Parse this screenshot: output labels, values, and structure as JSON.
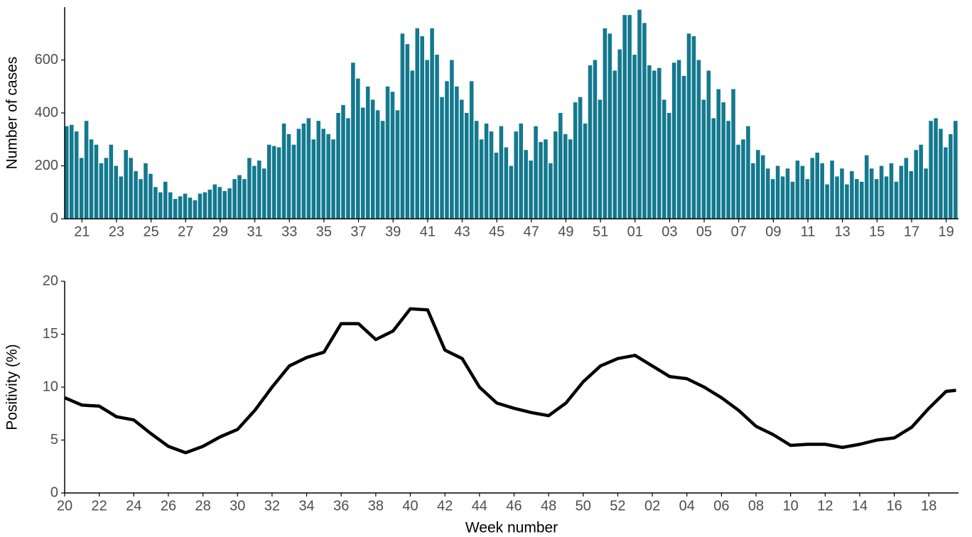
{
  "chart_data": [
    {
      "type": "bar",
      "ylabel": "Number of cases",
      "color": "#13798e",
      "xlim": [
        0,
        362
      ],
      "ylim": [
        0,
        800
      ],
      "yticks": [
        0,
        200,
        400,
        600
      ],
      "xticks": [
        {
          "value": 7,
          "label": "21"
        },
        {
          "value": 21,
          "label": "23"
        },
        {
          "value": 35,
          "label": "25"
        },
        {
          "value": 49,
          "label": "27"
        },
        {
          "value": 63,
          "label": "29"
        },
        {
          "value": 77,
          "label": "31"
        },
        {
          "value": 91,
          "label": "33"
        },
        {
          "value": 105,
          "label": "35"
        },
        {
          "value": 119,
          "label": "37"
        },
        {
          "value": 133,
          "label": "39"
        },
        {
          "value": 147,
          "label": "41"
        },
        {
          "value": 161,
          "label": "43"
        },
        {
          "value": 175,
          "label": "45"
        },
        {
          "value": 189,
          "label": "47"
        },
        {
          "value": 203,
          "label": "49"
        },
        {
          "value": 217,
          "label": "51"
        },
        {
          "value": 231,
          "label": "01"
        },
        {
          "value": 245,
          "label": "03"
        },
        {
          "value": 259,
          "label": "05"
        },
        {
          "value": 273,
          "label": "07"
        },
        {
          "value": 287,
          "label": "09"
        },
        {
          "value": 301,
          "label": "11"
        },
        {
          "value": 315,
          "label": "13"
        },
        {
          "value": 329,
          "label": "15"
        },
        {
          "value": 343,
          "label": "17"
        },
        {
          "value": 357,
          "label": "19"
        }
      ],
      "x": [
        0,
        2,
        4,
        6,
        8,
        10,
        12,
        14,
        16,
        18,
        20,
        22,
        24,
        26,
        28,
        30,
        32,
        34,
        36,
        38,
        40,
        42,
        44,
        46,
        48,
        50,
        52,
        54,
        56,
        58,
        60,
        62,
        64,
        66,
        68,
        70,
        72,
        74,
        76,
        78,
        80,
        82,
        84,
        86,
        88,
        90,
        92,
        94,
        96,
        98,
        100,
        102,
        104,
        106,
        108,
        110,
        112,
        114,
        116,
        118,
        120,
        122,
        124,
        126,
        128,
        130,
        132,
        134,
        136,
        138,
        140,
        142,
        144,
        146,
        148,
        150,
        152,
        154,
        156,
        158,
        160,
        162,
        164,
        166,
        168,
        170,
        172,
        174,
        176,
        178,
        180,
        182,
        184,
        186,
        188,
        190,
        192,
        194,
        196,
        198,
        200,
        202,
        204,
        206,
        208,
        210,
        212,
        214,
        216,
        218,
        220,
        222,
        224,
        226,
        228,
        230,
        232,
        234,
        236,
        238,
        240,
        242,
        244,
        246,
        248,
        250,
        252,
        254,
        256,
        258,
        260,
        262,
        264,
        266,
        268,
        270,
        272,
        274,
        276,
        278,
        280,
        282,
        284,
        286,
        288,
        290,
        292,
        294,
        296,
        298,
        300,
        302,
        304,
        306,
        308,
        310,
        312,
        314,
        316,
        318,
        320,
        322,
        324,
        326,
        328,
        330,
        332,
        334,
        336,
        338,
        340,
        342,
        344,
        346,
        348,
        350,
        352,
        354,
        356,
        358,
        360
      ],
      "values": [
        350,
        355,
        330,
        230,
        370,
        300,
        280,
        210,
        230,
        280,
        200,
        160,
        260,
        230,
        180,
        150,
        210,
        170,
        120,
        100,
        140,
        100,
        75,
        85,
        95,
        80,
        70,
        95,
        100,
        110,
        130,
        120,
        105,
        115,
        150,
        165,
        150,
        230,
        200,
        220,
        190,
        280,
        275,
        270,
        360,
        320,
        280,
        340,
        360,
        380,
        300,
        370,
        340,
        320,
        300,
        400,
        430,
        380,
        590,
        530,
        420,
        500,
        450,
        410,
        370,
        500,
        480,
        410,
        700,
        660,
        560,
        720,
        690,
        600,
        720,
        620,
        460,
        520,
        600,
        500,
        450,
        400,
        520,
        370,
        300,
        360,
        330,
        250,
        350,
        270,
        200,
        330,
        360,
        260,
        220,
        350,
        290,
        300,
        210,
        330,
        400,
        320,
        300,
        440,
        460,
        360,
        580,
        600,
        450,
        720,
        700,
        560,
        640,
        770,
        770,
        620,
        790,
        740,
        580,
        560,
        570,
        450,
        400,
        590,
        600,
        540,
        700,
        690,
        600,
        450,
        560,
        380,
        490,
        440,
        370,
        490,
        280,
        300,
        350,
        210,
        260,
        240,
        190,
        150,
        200,
        160,
        190,
        140,
        220,
        200,
        150,
        230,
        250,
        210,
        130,
        220,
        160,
        190,
        130,
        180,
        150,
        140,
        240,
        190,
        150,
        200,
        160,
        210,
        140,
        200,
        230,
        180,
        260,
        280,
        190,
        370,
        380,
        340,
        270,
        320,
        370
      ]
    },
    {
      "type": "line",
      "xlabel": "Week number",
      "ylabel": "Positivity (%)",
      "color": "#000000",
      "xlim": [
        0,
        362
      ],
      "ylim": [
        0,
        20
      ],
      "yticks": [
        0,
        5,
        10,
        15,
        20
      ],
      "xticks": [
        {
          "value": 0,
          "label": "20"
        },
        {
          "value": 14,
          "label": "22"
        },
        {
          "value": 28,
          "label": "24"
        },
        {
          "value": 42,
          "label": "26"
        },
        {
          "value": 56,
          "label": "28"
        },
        {
          "value": 70,
          "label": "30"
        },
        {
          "value": 84,
          "label": "32"
        },
        {
          "value": 98,
          "label": "34"
        },
        {
          "value": 112,
          "label": "36"
        },
        {
          "value": 126,
          "label": "38"
        },
        {
          "value": 140,
          "label": "40"
        },
        {
          "value": 154,
          "label": "42"
        },
        {
          "value": 168,
          "label": "44"
        },
        {
          "value": 182,
          "label": "46"
        },
        {
          "value": 196,
          "label": "48"
        },
        {
          "value": 210,
          "label": "50"
        },
        {
          "value": 224,
          "label": "52"
        },
        {
          "value": 238,
          "label": "02"
        },
        {
          "value": 252,
          "label": "04"
        },
        {
          "value": 266,
          "label": "06"
        },
        {
          "value": 280,
          "label": "08"
        },
        {
          "value": 294,
          "label": "10"
        },
        {
          "value": 308,
          "label": "12"
        },
        {
          "value": 322,
          "label": "14"
        },
        {
          "value": 336,
          "label": "16"
        },
        {
          "value": 350,
          "label": "18"
        }
      ],
      "x": [
        0,
        7,
        14,
        21,
        28,
        35,
        42,
        49,
        56,
        63,
        70,
        77,
        84,
        91,
        98,
        105,
        112,
        119,
        126,
        133,
        140,
        147,
        154,
        161,
        168,
        175,
        182,
        189,
        196,
        203,
        210,
        217,
        224,
        231,
        238,
        245,
        252,
        259,
        266,
        273,
        280,
        287,
        294,
        301,
        308,
        315,
        322,
        329,
        336,
        343,
        350,
        357,
        361
      ],
      "values": [
        9.0,
        8.3,
        8.2,
        7.2,
        6.9,
        5.6,
        4.4,
        3.8,
        4.4,
        5.3,
        6.0,
        7.8,
        10.0,
        12.0,
        12.8,
        13.3,
        16.0,
        16.0,
        14.5,
        15.3,
        17.4,
        17.3,
        13.5,
        12.7,
        10.0,
        8.5,
        8.0,
        7.6,
        7.3,
        8.5,
        10.5,
        12.0,
        12.7,
        13.0,
        12.0,
        11.0,
        10.8,
        10.0,
        9.0,
        7.8,
        6.3,
        5.5,
        4.5,
        4.6,
        4.6,
        4.3,
        4.6,
        5.0,
        5.2,
        6.2,
        8.0,
        9.6,
        9.7
      ]
    }
  ]
}
